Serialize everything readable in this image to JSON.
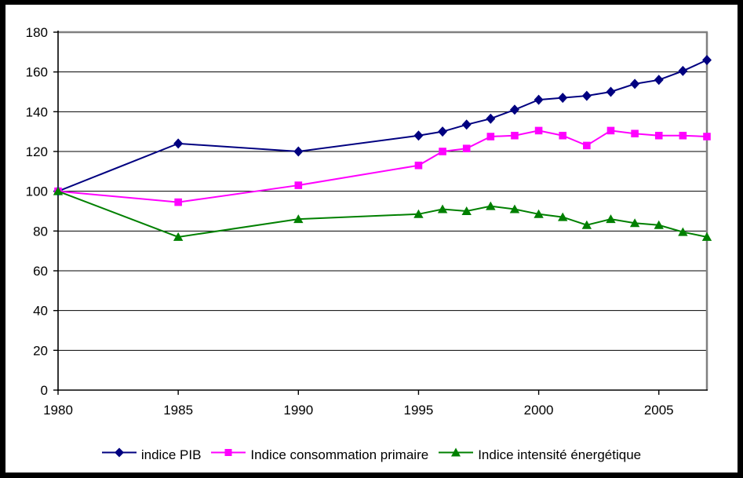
{
  "chart_data": {
    "type": "line",
    "x": [
      1980,
      1985,
      1990,
      1995,
      1996,
      1997,
      1998,
      1999,
      2000,
      2001,
      2002,
      2003,
      2004,
      2005,
      2006,
      2007
    ],
    "series": [
      {
        "name": "indice PIB",
        "color": "#000080",
        "marker": "diamond",
        "values": [
          100,
          124,
          120,
          128,
          130,
          133.5,
          136.5,
          141,
          146,
          147,
          148,
          150,
          154,
          156,
          160.5,
          166
        ]
      },
      {
        "name": "Indice consommation primaire",
        "color": "#FF00FF",
        "marker": "square",
        "values": [
          100,
          94.5,
          103,
          113,
          120,
          121.5,
          127.5,
          128,
          130.5,
          128,
          123,
          130.5,
          129,
          128,
          128,
          127.5
        ]
      },
      {
        "name": "Indice intensité énergétique",
        "color": "#008000",
        "marker": "triangle",
        "values": [
          100,
          77,
          86,
          88.5,
          91,
          90,
          92.5,
          91,
          88.5,
          87,
          83,
          86,
          84,
          83,
          79.5,
          77
        ]
      }
    ],
    "title": "",
    "xlabel": "",
    "ylabel": "",
    "xlim": [
      1980,
      2007
    ],
    "ylim": [
      0,
      180
    ],
    "ytick_step": 20,
    "yticks": [
      0,
      20,
      40,
      60,
      80,
      100,
      120,
      140,
      160,
      180
    ],
    "xticks": [
      1980,
      1985,
      1990,
      1995,
      2000,
      2005
    ],
    "grid": "horizontal",
    "legend_position": "bottom"
  },
  "style": {
    "background": "#FFFFFF",
    "frame_color": "#000000",
    "plot_border_color": "#808080",
    "axis_color": "#000000",
    "gridline_color": "#000000",
    "text_color": "#000000"
  }
}
